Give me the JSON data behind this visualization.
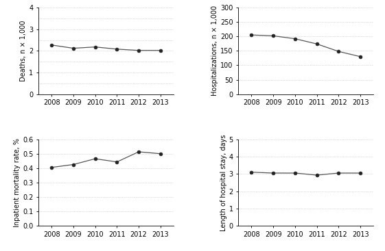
{
  "years": [
    2008,
    2009,
    2010,
    2011,
    2012,
    2013
  ],
  "deaths": [
    2.27,
    2.12,
    2.18,
    2.08,
    2.02,
    2.02
  ],
  "hospitalizations": [
    205,
    202,
    192,
    174,
    148,
    130
  ],
  "inpatient_mortality": [
    0.405,
    0.425,
    0.465,
    0.443,
    0.513,
    0.5
  ],
  "length_of_stay": [
    3.1,
    3.05,
    3.05,
    2.93,
    3.05,
    3.05
  ],
  "ylabel_deaths": "Deaths, n × 1,000",
  "ylabel_hosp": "Hospitalizations, n × 1,000",
  "ylabel_inpat": "Inpatient mortality rate, %",
  "ylabel_los": "Length of hospital stay, days",
  "ylim_deaths": [
    0,
    4
  ],
  "ylim_hosp": [
    0,
    300
  ],
  "ylim_inpat": [
    0.0,
    0.6
  ],
  "ylim_los": [
    0,
    5
  ],
  "yticks_deaths": [
    0,
    1,
    2,
    3,
    4
  ],
  "yticks_hosp": [
    0,
    50,
    100,
    150,
    200,
    250,
    300
  ],
  "yticks_inpat": [
    0.0,
    0.1,
    0.2,
    0.3,
    0.4,
    0.5,
    0.6
  ],
  "yticks_los": [
    0,
    1,
    2,
    3,
    4,
    5
  ],
  "grid_deaths": [
    0.0,
    0.5,
    1.0,
    1.5,
    2.0,
    2.5,
    3.0,
    3.5,
    4.0
  ],
  "grid_hosp": [
    0,
    50,
    100,
    150,
    200,
    250,
    300
  ],
  "grid_inpat": [
    0.0,
    0.1,
    0.2,
    0.3,
    0.4,
    0.5,
    0.6
  ],
  "grid_los": [
    0,
    1,
    2,
    3,
    4,
    5
  ],
  "line_color": "#555555",
  "marker_color": "#222222",
  "grid_color": "#bbbbbb",
  "bg_color": "#ffffff",
  "label_fontsize": 7.0,
  "tick_fontsize": 7.0
}
